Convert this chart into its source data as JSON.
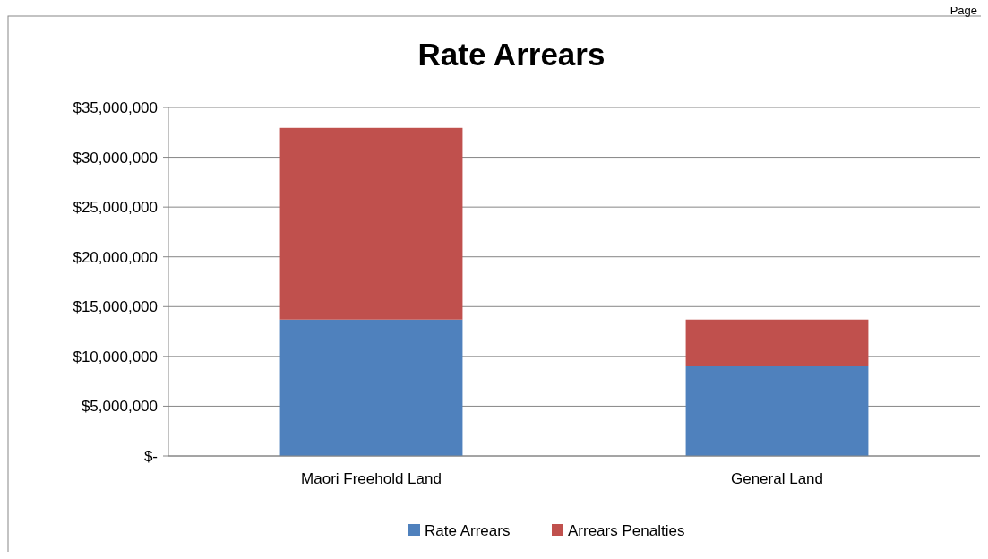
{
  "chart_data": {
    "type": "bar",
    "title": "Rate Arrears",
    "stacked": true,
    "categories": [
      "Maori Freehold Land",
      "General Land"
    ],
    "series": [
      {
        "name": "Rate Arrears",
        "color": "#4f81bd",
        "values": [
          13700000,
          9000000
        ]
      },
      {
        "name": "Arrears Penalties",
        "color": "#c0504d",
        "values": [
          19250000,
          4700000
        ]
      }
    ],
    "ylim": [
      0,
      35000000
    ],
    "yticks": [
      {
        "value": 0,
        "label": "$-"
      },
      {
        "value": 5000000,
        "label": "$5,000,000"
      },
      {
        "value": 10000000,
        "label": "$10,000,000"
      },
      {
        "value": 15000000,
        "label": "$15,000,000"
      },
      {
        "value": 20000000,
        "label": "$20,000,000"
      },
      {
        "value": 25000000,
        "label": "$25,000,000"
      },
      {
        "value": 30000000,
        "label": "$30,000,000"
      },
      {
        "value": 35000000,
        "label": "$35,000,000"
      }
    ],
    "grid": "y",
    "legend": "bottom",
    "annotations": [
      "Page"
    ]
  }
}
